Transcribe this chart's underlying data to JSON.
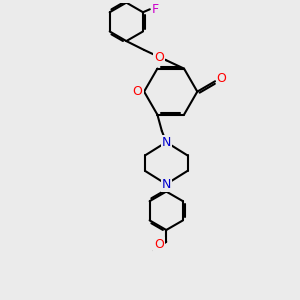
{
  "background_color": "#ebebeb",
  "bond_color": "#000000",
  "bond_width": 1.5,
  "atom_colors": {
    "O": "#ff0000",
    "N": "#0000cc",
    "F": "#cc00cc",
    "C": "#000000"
  },
  "font_size": 9
}
